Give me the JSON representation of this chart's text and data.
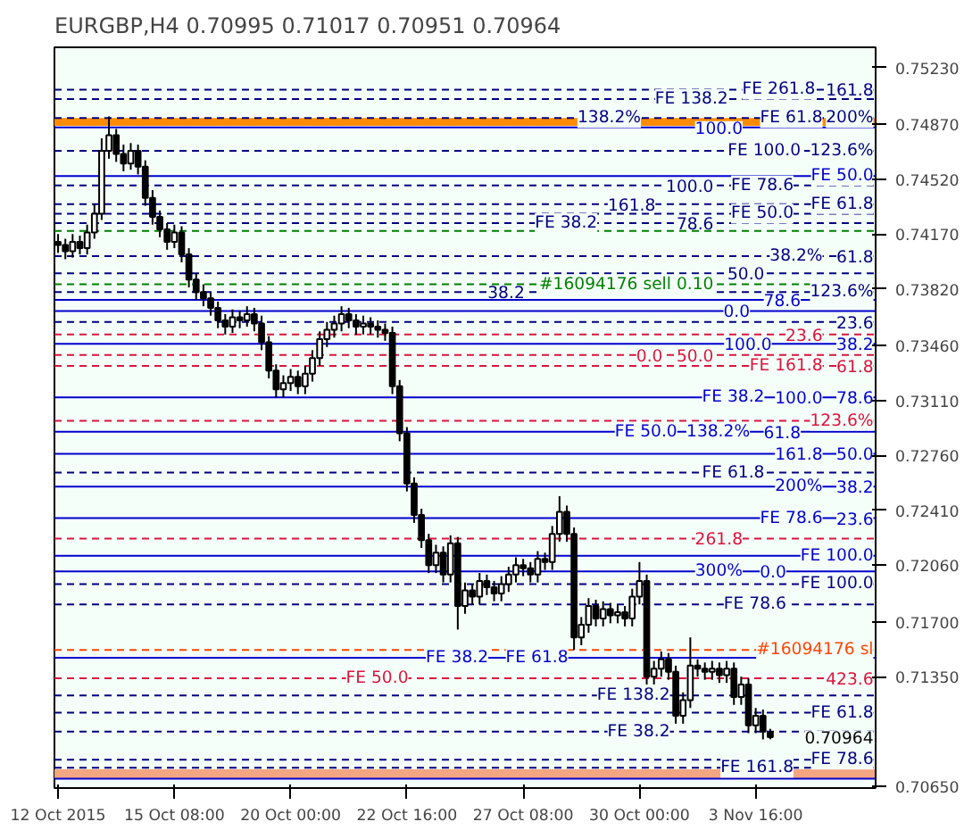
{
  "chart_data": {
    "type": "candlestick",
    "title": "EURGBP,H4  0.70995 0.71017 0.70951 0.70964",
    "categories": [
      "12 Oct 2015",
      null,
      null,
      null,
      null,
      null,
      null,
      null,
      null,
      null,
      null,
      null,
      null,
      null,
      null,
      null,
      "15 Oct 08:00",
      null,
      null,
      null,
      null,
      null,
      null,
      null,
      null,
      null,
      null,
      null,
      null,
      null,
      null,
      null,
      "20 Oct 00:00",
      null,
      null,
      null,
      null,
      null,
      null,
      null,
      null,
      null,
      null,
      null,
      null,
      null,
      null,
      null,
      "22 Oct 16:00",
      null,
      null,
      null,
      null,
      null,
      null,
      null,
      null,
      null,
      null,
      null,
      null,
      null,
      null,
      null,
      "27 Oct 08:00",
      null,
      null,
      null,
      null,
      null,
      null,
      null,
      null,
      null,
      null,
      null,
      null,
      null,
      null,
      null,
      "30 Oct 00:00",
      null,
      null,
      null,
      null,
      null,
      null,
      null,
      null,
      null,
      null,
      null,
      null,
      null,
      null,
      null,
      "3 Nov 16:00",
      null,
      null,
      null,
      null,
      null,
      null,
      null,
      null,
      null,
      null,
      null,
      null,
      null,
      null,
      null,
      null
    ],
    "ohlc": [
      [
        0.7412,
        0.7417,
        0.7405,
        0.741
      ],
      [
        0.741,
        0.7414,
        0.7401,
        0.7406
      ],
      [
        0.7406,
        0.7417,
        0.7402,
        0.7412
      ],
      [
        0.7412,
        0.7416,
        0.7404,
        0.7408
      ],
      [
        0.7408,
        0.7423,
        0.7404,
        0.7418
      ],
      [
        0.7418,
        0.7436,
        0.7414,
        0.743
      ],
      [
        0.743,
        0.7478,
        0.7426,
        0.747
      ],
      [
        0.747,
        0.7492,
        0.7465,
        0.748
      ],
      [
        0.748,
        0.7484,
        0.7463,
        0.7468
      ],
      [
        0.7468,
        0.7474,
        0.7457,
        0.7462
      ],
      [
        0.7462,
        0.7475,
        0.7458,
        0.747
      ],
      [
        0.747,
        0.7474,
        0.7455,
        0.746
      ],
      [
        0.746,
        0.7464,
        0.7435,
        0.744
      ],
      [
        0.744,
        0.7445,
        0.7423,
        0.7428
      ],
      [
        0.7428,
        0.7432,
        0.7415,
        0.742
      ],
      [
        0.742,
        0.7424,
        0.7407,
        0.7412
      ],
      [
        0.7412,
        0.7423,
        0.7408,
        0.7418
      ],
      [
        0.7418,
        0.7422,
        0.7399,
        0.7404
      ],
      [
        0.7404,
        0.7408,
        0.7383,
        0.7388
      ],
      [
        0.7388,
        0.7392,
        0.7375,
        0.738
      ],
      [
        0.738,
        0.7385,
        0.7371,
        0.7376
      ],
      [
        0.7376,
        0.738,
        0.7365,
        0.737
      ],
      [
        0.737,
        0.7374,
        0.7357,
        0.7362
      ],
      [
        0.7362,
        0.7366,
        0.7353,
        0.7358
      ],
      [
        0.7358,
        0.7369,
        0.7354,
        0.7364
      ],
      [
        0.7364,
        0.7368,
        0.7357,
        0.7362
      ],
      [
        0.7362,
        0.7371,
        0.7358,
        0.7366
      ],
      [
        0.7366,
        0.737,
        0.7355,
        0.736
      ],
      [
        0.736,
        0.7365,
        0.7343,
        0.7348
      ],
      [
        0.7348,
        0.7352,
        0.7325,
        0.733
      ],
      [
        0.733,
        0.7334,
        0.7313,
        0.7318
      ],
      [
        0.7318,
        0.7327,
        0.7313,
        0.7322
      ],
      [
        0.7322,
        0.7331,
        0.7317,
        0.7326
      ],
      [
        0.7326,
        0.733,
        0.7315,
        0.732
      ],
      [
        0.732,
        0.7333,
        0.7315,
        0.7328
      ],
      [
        0.7328,
        0.7343,
        0.7323,
        0.7338
      ],
      [
        0.7338,
        0.7355,
        0.7333,
        0.735
      ],
      [
        0.735,
        0.7361,
        0.7345,
        0.7356
      ],
      [
        0.7356,
        0.7365,
        0.7351,
        0.736
      ],
      [
        0.736,
        0.7371,
        0.7355,
        0.7366
      ],
      [
        0.7366,
        0.737,
        0.7357,
        0.7362
      ],
      [
        0.7362,
        0.7366,
        0.7353,
        0.7358
      ],
      [
        0.7358,
        0.7365,
        0.7353,
        0.736
      ],
      [
        0.736,
        0.7364,
        0.7353,
        0.7358
      ],
      [
        0.7358,
        0.7362,
        0.7351,
        0.7356
      ],
      [
        0.7356,
        0.736,
        0.7349,
        0.7354
      ],
      [
        0.7354,
        0.7358,
        0.7315,
        0.732
      ],
      [
        0.732,
        0.7324,
        0.7285,
        0.729
      ],
      [
        0.729,
        0.7294,
        0.7253,
        0.7258
      ],
      [
        0.7258,
        0.7262,
        0.7233,
        0.7238
      ],
      [
        0.7238,
        0.7242,
        0.7217,
        0.7222
      ],
      [
        0.7222,
        0.7226,
        0.7201,
        0.7206
      ],
      [
        0.7206,
        0.7219,
        0.7201,
        0.7214
      ],
      [
        0.7214,
        0.7218,
        0.7195,
        0.72
      ],
      [
        0.72,
        0.7225,
        0.7195,
        0.722
      ],
      [
        0.722,
        0.7224,
        0.7165,
        0.718
      ],
      [
        0.718,
        0.7195,
        0.7175,
        0.719
      ],
      [
        0.719,
        0.7194,
        0.7181,
        0.7186
      ],
      [
        0.7186,
        0.7201,
        0.7181,
        0.7196
      ],
      [
        0.7196,
        0.72,
        0.7187,
        0.7192
      ],
      [
        0.7192,
        0.7196,
        0.7183,
        0.7188
      ],
      [
        0.7188,
        0.7199,
        0.7183,
        0.7194
      ],
      [
        0.7194,
        0.7205,
        0.7189,
        0.72
      ],
      [
        0.72,
        0.7211,
        0.7195,
        0.7206
      ],
      [
        0.7206,
        0.721,
        0.7199,
        0.7204
      ],
      [
        0.7204,
        0.7208,
        0.7195,
        0.72
      ],
      [
        0.72,
        0.7215,
        0.7195,
        0.721
      ],
      [
        0.721,
        0.7214,
        0.7203,
        0.7208
      ],
      [
        0.7208,
        0.7231,
        0.7203,
        0.7226
      ],
      [
        0.7226,
        0.725,
        0.7221,
        0.724
      ],
      [
        0.724,
        0.7244,
        0.7221,
        0.7226
      ],
      [
        0.7226,
        0.723,
        0.7152,
        0.716
      ],
      [
        0.716,
        0.7173,
        0.7155,
        0.7168
      ],
      [
        0.7168,
        0.7185,
        0.7163,
        0.718
      ],
      [
        0.718,
        0.7184,
        0.7167,
        0.7172
      ],
      [
        0.7172,
        0.7183,
        0.7167,
        0.7178
      ],
      [
        0.7178,
        0.7182,
        0.7169,
        0.7174
      ],
      [
        0.7174,
        0.7181,
        0.7169,
        0.7176
      ],
      [
        0.7176,
        0.718,
        0.7167,
        0.7172
      ],
      [
        0.7172,
        0.7191,
        0.7167,
        0.7186
      ],
      [
        0.7186,
        0.7208,
        0.7181,
        0.7196
      ],
      [
        0.7196,
        0.72,
        0.713,
        0.7135
      ],
      [
        0.7135,
        0.7145,
        0.713,
        0.714
      ],
      [
        0.714,
        0.7151,
        0.7135,
        0.7146
      ],
      [
        0.7146,
        0.715,
        0.7133,
        0.7138
      ],
      [
        0.7138,
        0.7142,
        0.7105,
        0.711
      ],
      [
        0.711,
        0.7125,
        0.7105,
        0.712
      ],
      [
        0.712,
        0.716,
        0.7115,
        0.7142
      ],
      [
        0.7142,
        0.7146,
        0.7135,
        0.714
      ],
      [
        0.714,
        0.7144,
        0.7133,
        0.7138
      ],
      [
        0.7138,
        0.7145,
        0.7133,
        0.714
      ],
      [
        0.714,
        0.7144,
        0.7131,
        0.7136
      ],
      [
        0.7136,
        0.7145,
        0.7131,
        0.714
      ],
      [
        0.714,
        0.7144,
        0.7117,
        0.7122
      ],
      [
        0.7122,
        0.7135,
        0.7117,
        0.713
      ],
      [
        0.713,
        0.7134,
        0.7099,
        0.7104
      ],
      [
        0.7104,
        0.7115,
        0.7099,
        0.711
      ],
      [
        0.711,
        0.7114,
        0.7095,
        0.71
      ],
      [
        0.70995,
        0.71017,
        0.70951,
        0.70964
      ],
      null,
      null,
      null,
      null,
      null,
      null,
      null,
      null,
      null,
      null,
      null,
      null,
      null,
      null
    ],
    "ylim": [
      0.7064,
      0.7536
    ],
    "yticks": [
      {
        "value": 0.7523,
        "label": "0.75230"
      },
      {
        "value": 0.7487,
        "label": "0.74870"
      },
      {
        "value": 0.7452,
        "label": "0.74520"
      },
      {
        "value": 0.7417,
        "label": "0.74170"
      },
      {
        "value": 0.7382,
        "label": "0.73820"
      },
      {
        "value": 0.7346,
        "label": "0.73460"
      },
      {
        "value": 0.7311,
        "label": "0.73110"
      },
      {
        "value": 0.7276,
        "label": "0.72760"
      },
      {
        "value": 0.7241,
        "label": "0.72410"
      },
      {
        "value": 0.7206,
        "label": "0.72060"
      },
      {
        "value": 0.717,
        "label": "0.71700"
      },
      {
        "value": 0.7135,
        "label": "0.71350"
      },
      {
        "value": 0.7065,
        "label": "0.70650"
      }
    ],
    "bands": [
      {
        "axis": "y",
        "from": 0.7486,
        "to": 0.7491,
        "color": "#ff8c00"
      },
      {
        "axis": "y",
        "from": 0.707,
        "to": 0.7076,
        "color": "#f4a582"
      }
    ],
    "ref_lines": [
      {
        "axis": "y",
        "value": 0.7509,
        "color": "#000080",
        "line_style": "dashed"
      },
      {
        "axis": "y",
        "value": 0.7503,
        "color": "#000080",
        "line_style": "dashed"
      },
      {
        "axis": "y",
        "value": 0.7491,
        "color": "#000080",
        "line_style": "dashed"
      },
      {
        "axis": "y",
        "value": 0.7485,
        "color": "#0000cd",
        "line_style": "solid"
      },
      {
        "axis": "y",
        "value": 0.747,
        "color": "#000080",
        "line_style": "dashed"
      },
      {
        "axis": "y",
        "value": 0.7454,
        "color": "#0000cd",
        "line_style": "solid"
      },
      {
        "axis": "y",
        "value": 0.7448,
        "color": "#000080",
        "line_style": "dashed"
      },
      {
        "axis": "y",
        "value": 0.7436,
        "color": "#000080",
        "line_style": "dashed"
      },
      {
        "axis": "y",
        "value": 0.743,
        "color": "#000080",
        "line_style": "dashed"
      },
      {
        "axis": "y",
        "value": 0.7424,
        "color": "#000080",
        "line_style": "dashed"
      },
      {
        "axis": "y",
        "value": 0.7419,
        "color": "#008000",
        "line_style": "dashed"
      },
      {
        "axis": "y",
        "value": 0.7403,
        "color": "#000080",
        "line_style": "dashed"
      },
      {
        "axis": "y",
        "value": 0.7392,
        "color": "#000080",
        "line_style": "dashed"
      },
      {
        "axis": "y",
        "value": 0.7385,
        "color": "#008000",
        "line_style": "dashed"
      },
      {
        "axis": "y",
        "value": 0.738,
        "color": "#000080",
        "line_style": "dashed"
      },
      {
        "axis": "y",
        "value": 0.7375,
        "color": "#0000cd",
        "line_style": "solid"
      },
      {
        "axis": "y",
        "value": 0.7368,
        "color": "#0000cd",
        "line_style": "solid"
      },
      {
        "axis": "y",
        "value": 0.7361,
        "color": "#000080",
        "line_style": "dashed"
      },
      {
        "axis": "y",
        "value": 0.7353,
        "color": "#dc143c",
        "line_style": "dashed"
      },
      {
        "axis": "y",
        "value": 0.7347,
        "color": "#0000cd",
        "line_style": "solid"
      },
      {
        "axis": "y",
        "value": 0.734,
        "color": "#dc143c",
        "line_style": "dashed"
      },
      {
        "axis": "y",
        "value": 0.7333,
        "color": "#dc143c",
        "line_style": "dashed"
      },
      {
        "axis": "y",
        "value": 0.7313,
        "color": "#0000cd",
        "line_style": "solid"
      },
      {
        "axis": "y",
        "value": 0.7298,
        "color": "#dc143c",
        "line_style": "dashed"
      },
      {
        "axis": "y",
        "value": 0.7291,
        "color": "#0000cd",
        "line_style": "solid"
      },
      {
        "axis": "y",
        "value": 0.7277,
        "color": "#0000cd",
        "line_style": "solid"
      },
      {
        "axis": "y",
        "value": 0.7265,
        "color": "#000080",
        "line_style": "dashed"
      },
      {
        "axis": "y",
        "value": 0.7256,
        "color": "#0000cd",
        "line_style": "solid"
      },
      {
        "axis": "y",
        "value": 0.7236,
        "color": "#0000cd",
        "line_style": "solid"
      },
      {
        "axis": "y",
        "value": 0.7223,
        "color": "#dc143c",
        "line_style": "dashed"
      },
      {
        "axis": "y",
        "value": 0.7212,
        "color": "#0000cd",
        "line_style": "solid"
      },
      {
        "axis": "y",
        "value": 0.7202,
        "color": "#0000cd",
        "line_style": "solid"
      },
      {
        "axis": "y",
        "value": 0.7194,
        "color": "#000080",
        "line_style": "dashed"
      },
      {
        "axis": "y",
        "value": 0.7181,
        "color": "#000080",
        "line_style": "dashed"
      },
      {
        "axis": "y",
        "value": 0.7152,
        "color": "#ff4500",
        "line_style": "dashed"
      },
      {
        "axis": "y",
        "value": 0.7147,
        "color": "#0000cd",
        "line_style": "solid"
      },
      {
        "axis": "y",
        "value": 0.7134,
        "color": "#dc143c",
        "line_style": "dashed"
      },
      {
        "axis": "y",
        "value": 0.7123,
        "color": "#000080",
        "line_style": "dashed"
      },
      {
        "axis": "y",
        "value": 0.7112,
        "color": "#000080",
        "line_style": "dashed"
      },
      {
        "axis": "y",
        "value": 0.71,
        "color": "#000080",
        "line_style": "dashed"
      },
      {
        "axis": "y",
        "value": 0.7082,
        "color": "#000080",
        "line_style": "dashed"
      },
      {
        "axis": "y",
        "value": 0.7077,
        "color": "#000080",
        "line_style": "dashed"
      },
      {
        "axis": "y",
        "value": 0.707,
        "color": "#0000cd",
        "line_style": "solid"
      }
    ],
    "annotations": [
      {
        "text": "161.8",
        "y": 0.7509
      },
      {
        "text": "FE 261.8",
        "y": 0.7509
      },
      {
        "text": "FE 138.2",
        "y": 0.7503
      },
      {
        "text": "200%",
        "y": 0.7491
      },
      {
        "text": "FE 61.8",
        "y": 0.7491
      },
      {
        "text": "138.2%",
        "y": 0.7491
      },
      {
        "text": "100.0",
        "y": 0.7485
      },
      {
        "text": "123.6%",
        "y": 0.747
      },
      {
        "text": "FE 100.0",
        "y": 0.747
      },
      {
        "text": "FE 50.0",
        "y": 0.7454
      },
      {
        "text": "FE 78.6",
        "y": 0.7448
      },
      {
        "text": "100.0",
        "y": 0.7448
      },
      {
        "text": "FE 61.8",
        "y": 0.7436
      },
      {
        "text": "161.8",
        "y": 0.7436
      },
      {
        "text": "FE 50.0",
        "y": 0.743
      },
      {
        "text": "FE 38.2",
        "y": 0.7424
      },
      {
        "text": "78.6",
        "y": 0.7424
      },
      {
        "text": "61.8",
        "y": 0.7403
      },
      {
        "text": "38.2%",
        "y": 0.7403
      },
      {
        "text": "50.0",
        "y": 0.7392
      },
      {
        "text": "#16094176 sell 0.10",
        "y": 0.7385
      },
      {
        "text": "123.6%",
        "y": 0.738
      },
      {
        "text": "38.2",
        "y": 0.738
      },
      {
        "text": "78.6",
        "y": 0.7375
      },
      {
        "text": "0.0",
        "y": 0.7368
      },
      {
        "text": "23.6",
        "y": 0.7361
      },
      {
        "text": "23.6",
        "y": 0.7353
      },
      {
        "text": "100.0",
        "y": 0.7347
      },
      {
        "text": "38.2",
        "y": 0.7347
      },
      {
        "text": "50.0",
        "y": 0.734
      },
      {
        "text": "0.0",
        "y": 0.734
      },
      {
        "text": "61.8",
        "y": 0.7333
      },
      {
        "text": "FE 161.8",
        "y": 0.7333
      },
      {
        "text": "78.6",
        "y": 0.7313
      },
      {
        "text": "100.0",
        "y": 0.7313
      },
      {
        "text": "FE 38.2",
        "y": 0.7313
      },
      {
        "text": "123.6%",
        "y": 0.7298
      },
      {
        "text": "61.8",
        "y": 0.7291
      },
      {
        "text": "138.2%",
        "y": 0.7291
      },
      {
        "text": "FE 50.0",
        "y": 0.7291
      },
      {
        "text": "50.0",
        "y": 0.7277
      },
      {
        "text": "161.8",
        "y": 0.7277
      },
      {
        "text": "FE 61.8",
        "y": 0.7265
      },
      {
        "text": "38.2",
        "y": 0.7256
      },
      {
        "text": "200%",
        "y": 0.7256
      },
      {
        "text": "23.6",
        "y": 0.7236
      },
      {
        "text": "FE 78.6",
        "y": 0.7236
      },
      {
        "text": "261.8",
        "y": 0.7223
      },
      {
        "text": "FE 100.0",
        "y": 0.7212
      },
      {
        "text": "0.0",
        "y": 0.7202
      },
      {
        "text": "300%",
        "y": 0.7202
      },
      {
        "text": "FE 100.0",
        "y": 0.7194
      },
      {
        "text": "FE 78.6",
        "y": 0.7181
      },
      {
        "text": "#16094176 sl",
        "y": 0.7152
      },
      {
        "text": "FE 61.8",
        "y": 0.7147
      },
      {
        "text": "FE 38.2",
        "y": 0.7147
      },
      {
        "text": "423.6",
        "y": 0.7134
      },
      {
        "text": "FE 50.0",
        "y": 0.7134
      },
      {
        "text": "FE 138.2",
        "y": 0.7123
      },
      {
        "text": "FE 61.8",
        "y": 0.7112
      },
      {
        "text": "FE 38.2",
        "y": 0.71
      },
      "0.70964",
      {
        "text": "FE 78.6",
        "y": 0.7082
      },
      {
        "text": "FE 161.8",
        "y": 0.7077
      }
    ]
  }
}
